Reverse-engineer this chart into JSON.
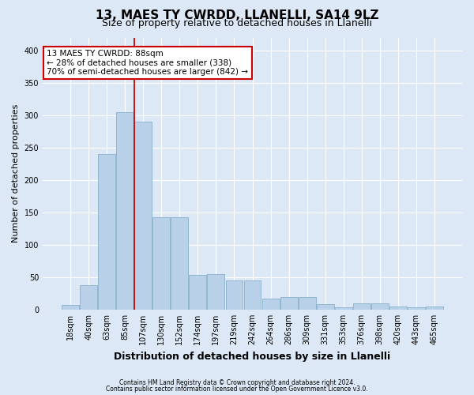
{
  "title1": "13, MAES TY CWRDD, LLANELLI, SA14 9LZ",
  "title2": "Size of property relative to detached houses in Llanelli",
  "xlabel": "Distribution of detached houses by size in Llanelli",
  "ylabel": "Number of detached properties",
  "categories": [
    "18sqm",
    "40sqm",
    "63sqm",
    "85sqm",
    "107sqm",
    "130sqm",
    "152sqm",
    "174sqm",
    "197sqm",
    "219sqm",
    "242sqm",
    "264sqm",
    "286sqm",
    "309sqm",
    "331sqm",
    "353sqm",
    "376sqm",
    "398sqm",
    "420sqm",
    "443sqm",
    "465sqm"
  ],
  "values": [
    7,
    38,
    240,
    305,
    290,
    142,
    142,
    53,
    55,
    45,
    45,
    17,
    19,
    19,
    8,
    4,
    10,
    10,
    5,
    3,
    5
  ],
  "bar_color": "#b8d0e8",
  "bar_edge_color": "#8ab0cc",
  "vline_x_index": 3.5,
  "vline_color": "#cc0000",
  "annotation_text": "13 MAES TY CWRDD: 88sqm\n← 28% of detached houses are smaller (338)\n70% of semi-detached houses are larger (842) →",
  "annotation_box_facecolor": "#ffffff",
  "annotation_box_edgecolor": "#cc0000",
  "footer1": "Contains HM Land Registry data © Crown copyright and database right 2024.",
  "footer2": "Contains public sector information licensed under the Open Government Licence v3.0.",
  "ylim": [
    0,
    420
  ],
  "yticks": [
    0,
    50,
    100,
    150,
    200,
    250,
    300,
    350,
    400
  ],
  "background_color": "#dce8f5",
  "grid_color": "#ffffff",
  "title1_fontsize": 11,
  "title2_fontsize": 9,
  "ylabel_fontsize": 8,
  "xlabel_fontsize": 9,
  "tick_fontsize": 7,
  "annotation_fontsize": 7.5
}
